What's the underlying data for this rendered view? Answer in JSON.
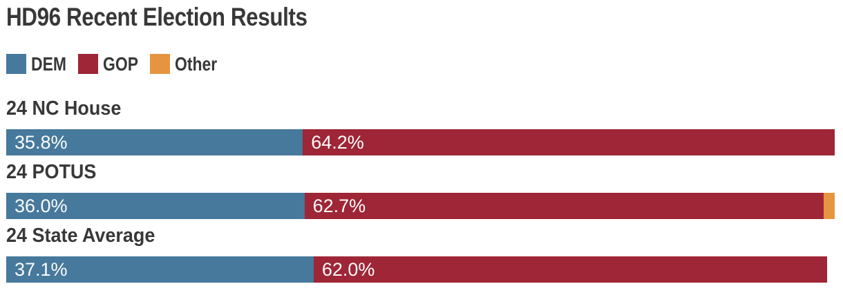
{
  "chart_data": {
    "type": "bar",
    "orientation": "horizontal-stacked",
    "title": "HD96 Recent Election Results",
    "categories": [
      "24 NC House",
      "24 POTUS",
      "24 State Average"
    ],
    "series": [
      {
        "name": "DEM",
        "color": "#46799c",
        "values": [
          35.8,
          36.0,
          37.1
        ]
      },
      {
        "name": "GOP",
        "color": "#9e2636",
        "values": [
          64.2,
          62.7,
          62.0
        ]
      },
      {
        "name": "Other",
        "color": "#e79440",
        "values": [
          0,
          1.3,
          0
        ]
      }
    ],
    "value_labels": {
      "DEM": [
        "35.8%",
        "36.0%",
        "37.1%"
      ],
      "GOP": [
        "64.2%",
        "62.7%",
        "62.0%"
      ],
      "Other": [
        "",
        "",
        ""
      ]
    },
    "xlim": [
      0,
      100
    ],
    "unit": "%",
    "grid": false,
    "legend_position": "top"
  },
  "legend": {
    "items": [
      {
        "label": "DEM",
        "color": "#46799c"
      },
      {
        "label": "GOP",
        "color": "#9e2636"
      },
      {
        "label": "Other",
        "color": "#e79440"
      }
    ]
  },
  "colors": {
    "background": "#ffffff",
    "heading_text": "#383838",
    "bar_value_text": "#fdfcfc"
  }
}
